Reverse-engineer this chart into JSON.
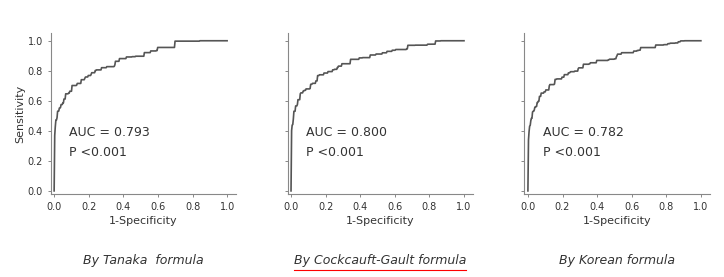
{
  "panels": [
    {
      "auc": "AUC = 0.793",
      "pval": "P <0.001",
      "xlabel": "1-Specificity",
      "caption": "By Tanaka  formula",
      "caption_underline": false,
      "seed": 42
    },
    {
      "auc": "AUC = 0.800",
      "pval": "P <0.001",
      "xlabel": "1-Specificity",
      "caption": "By Cockcauft-Gault formula",
      "caption_underline": true,
      "seed": 123
    },
    {
      "auc": "AUC = 0.782",
      "pval": "P <0.001",
      "xlabel": "1-Specificity",
      "caption": "By Korean formula",
      "caption_underline": false,
      "seed": 7
    }
  ],
  "ylabel": "Sensitivity",
  "yticks": [
    0.0,
    0.2,
    0.4,
    0.6,
    0.8,
    1.0
  ],
  "xticks": [
    0.0,
    0.2,
    0.4,
    0.6,
    0.8,
    1.0
  ],
  "tick_labels": [
    "0.0",
    "0.2",
    "0.4",
    "0.6",
    "0.8",
    "1.0"
  ],
  "line_color": "#555555",
  "line_width": 1.2,
  "text_color": "#333333",
  "bg_color": "#ffffff",
  "auc_fontsize": 9,
  "label_fontsize": 8,
  "caption_fontsize": 9,
  "aucs": [
    0.793,
    0.8,
    0.782
  ]
}
